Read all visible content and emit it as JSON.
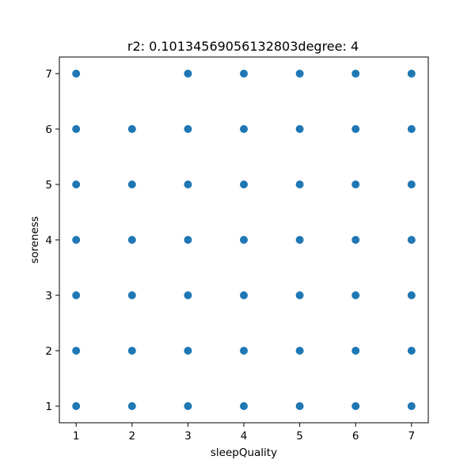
{
  "chart_data": {
    "type": "scatter",
    "title": "r2: 0.10134569056132803degree: 4",
    "xlabel": "sleepQuality",
    "ylabel": "soreness",
    "xlim": [
      0.7,
      7.3
    ],
    "ylim": [
      0.7,
      7.3
    ],
    "x_ticks": [
      1,
      2,
      3,
      4,
      5,
      6,
      7
    ],
    "y_ticks": [
      1,
      2,
      3,
      4,
      5,
      6,
      7
    ],
    "grid": false,
    "marker_color": "#1f77b4",
    "points": [
      {
        "x": 1,
        "y": 1
      },
      {
        "x": 1,
        "y": 2
      },
      {
        "x": 1,
        "y": 3
      },
      {
        "x": 1,
        "y": 4
      },
      {
        "x": 1,
        "y": 5
      },
      {
        "x": 1,
        "y": 6
      },
      {
        "x": 1,
        "y": 7
      },
      {
        "x": 2,
        "y": 1
      },
      {
        "x": 2,
        "y": 2
      },
      {
        "x": 2,
        "y": 3
      },
      {
        "x": 2,
        "y": 4
      },
      {
        "x": 2,
        "y": 5
      },
      {
        "x": 2,
        "y": 6
      },
      {
        "x": 3,
        "y": 1
      },
      {
        "x": 3,
        "y": 2
      },
      {
        "x": 3,
        "y": 3
      },
      {
        "x": 3,
        "y": 4
      },
      {
        "x": 3,
        "y": 5
      },
      {
        "x": 3,
        "y": 6
      },
      {
        "x": 3,
        "y": 7
      },
      {
        "x": 4,
        "y": 1
      },
      {
        "x": 4,
        "y": 2
      },
      {
        "x": 4,
        "y": 3
      },
      {
        "x": 4,
        "y": 4
      },
      {
        "x": 4,
        "y": 5
      },
      {
        "x": 4,
        "y": 6
      },
      {
        "x": 4,
        "y": 7
      },
      {
        "x": 5,
        "y": 1
      },
      {
        "x": 5,
        "y": 2
      },
      {
        "x": 5,
        "y": 3
      },
      {
        "x": 5,
        "y": 4
      },
      {
        "x": 5,
        "y": 5
      },
      {
        "x": 5,
        "y": 6
      },
      {
        "x": 5,
        "y": 7
      },
      {
        "x": 6,
        "y": 1
      },
      {
        "x": 6,
        "y": 2
      },
      {
        "x": 6,
        "y": 3
      },
      {
        "x": 6,
        "y": 4
      },
      {
        "x": 6,
        "y": 5
      },
      {
        "x": 6,
        "y": 6
      },
      {
        "x": 6,
        "y": 7
      },
      {
        "x": 7,
        "y": 1
      },
      {
        "x": 7,
        "y": 2
      },
      {
        "x": 7,
        "y": 3
      },
      {
        "x": 7,
        "y": 4
      },
      {
        "x": 7,
        "y": 5
      },
      {
        "x": 7,
        "y": 6
      },
      {
        "x": 7,
        "y": 7
      }
    ]
  }
}
